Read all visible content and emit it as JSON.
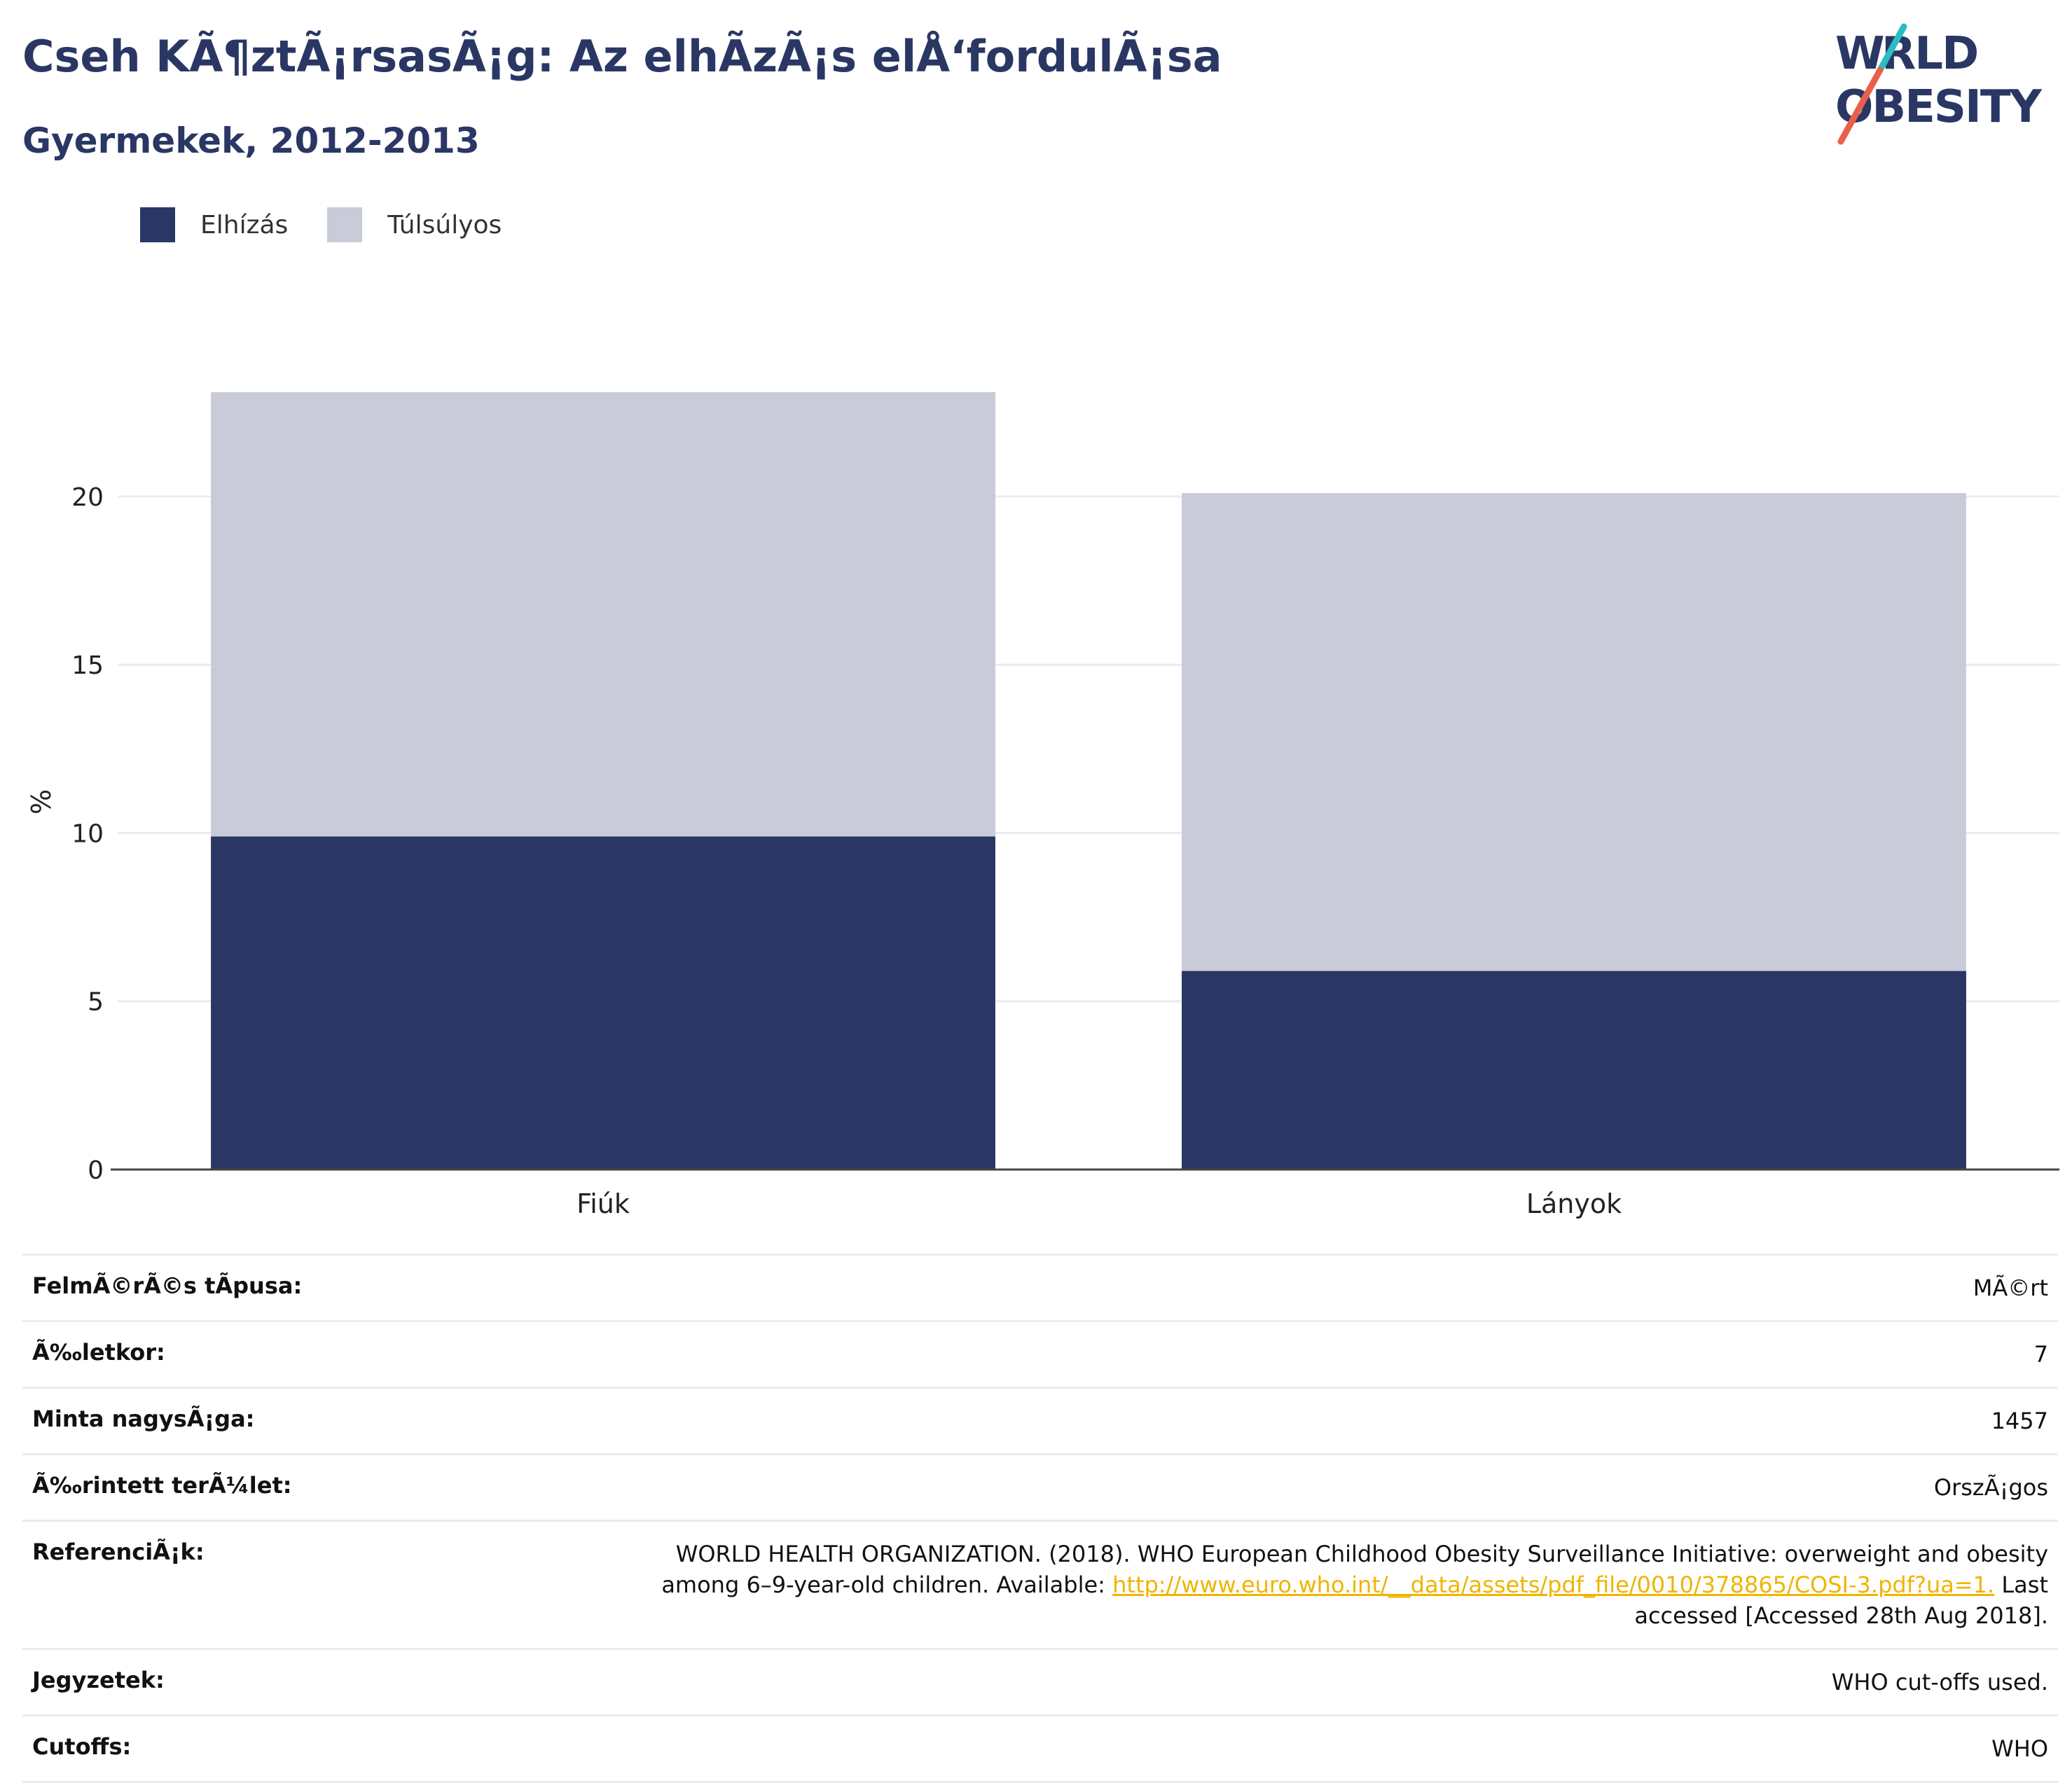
{
  "header": {
    "title": "Cseh KÃ¶ztÃ¡rsasÃ¡g: Az elhÃzÃ¡s elÅ‘fordulÃ¡sa",
    "subtitle": "Gyermekek, 2012-2013"
  },
  "logo": {
    "line1": "WORLD",
    "line2": "OBESITY"
  },
  "colors": {
    "obesity": "#2a3764",
    "overweight": "#c9ccd8",
    "accent_teal": "#2bbdc4",
    "accent_red": "#e8604c",
    "link": "#f0b400"
  },
  "chart_data": {
    "type": "bar",
    "stacked": true,
    "categories": [
      "Fiúk",
      "Lányok"
    ],
    "series": [
      {
        "name": "Elhízás",
        "values": [
          9.9,
          5.9
        ],
        "color": "#2a3764"
      },
      {
        "name": "Túlsúlyos",
        "values": [
          13.2,
          14.2
        ],
        "color": "#c9ccd8"
      }
    ],
    "ylabel": "%",
    "ylim": [
      0,
      23.1
    ],
    "yticks": [
      0,
      5,
      10,
      15,
      20
    ],
    "grid": true,
    "legend": "top-left"
  },
  "info": {
    "survey_type_label": "FelmÃ©rÃ©s tÃpusa:",
    "survey_type_value": "MÃ©rt",
    "age_label": "Ã‰letkor:",
    "age_value": "7",
    "sample_label": "Minta nagysÃ¡ga:",
    "sample_value": "1457",
    "area_label": "Ã‰rintett terÃ¼let:",
    "area_value": "OrszÃ¡gos",
    "ref_label": "ReferenciÃ¡k:",
    "ref_text_1": "WORLD HEALTH ORGANIZATION. (2018). WHO European Childhood Obesity Surveillance Initiative: overweight and obesity among 6–9-year-old children. Available: ",
    "ref_link": "http://www.euro.who.int/__data/assets/pdf_file/0010/378865/COSI-3.pdf?ua=1.",
    "ref_text_2": " Last accessed [Accessed 28th Aug 2018].",
    "notes_label": "Jegyzetek:",
    "notes_value": "WHO cut-offs used.",
    "cutoffs_label": "Cutoffs:",
    "cutoffs_value": "WHO"
  }
}
